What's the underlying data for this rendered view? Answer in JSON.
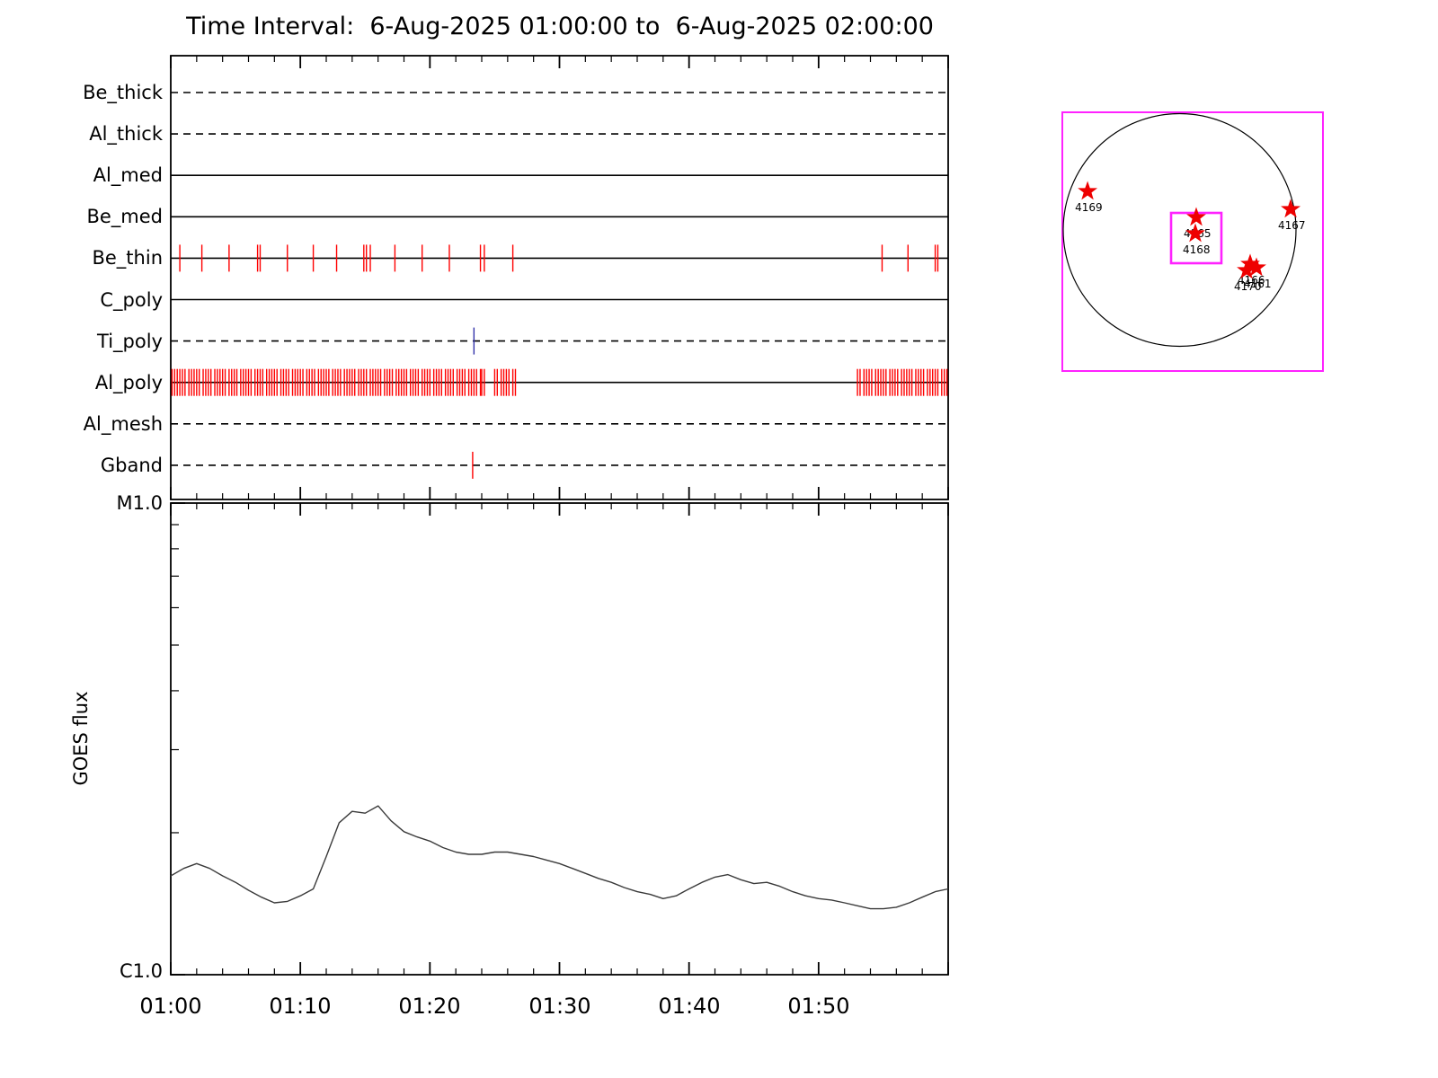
{
  "page": {
    "title": "Time Interval:  6-Aug-2025 01:00:00 to  6-Aug-2025 02:00:00"
  },
  "chart_data": [
    {
      "type": "line",
      "name": "xrt_filter_exposure_timeline",
      "x_axis": {
        "start": "01:00",
        "end": "02:00",
        "minutes_span": 60
      },
      "exposure_tick_color": "#ff0000",
      "rows": [
        {
          "label": "Be_thick",
          "line_style": "dashed",
          "exposures": []
        },
        {
          "label": "Al_thick",
          "line_style": "dashed",
          "exposures": []
        },
        {
          "label": "Al_med",
          "line_style": "solid",
          "exposures": []
        },
        {
          "label": "Be_med",
          "line_style": "solid",
          "exposures": []
        },
        {
          "label": "Be_thin",
          "line_style": "solid",
          "exposure_color": "#ff0000",
          "exposures": [
            0.7,
            2.4,
            4.5,
            6.7,
            6.9,
            9.0,
            11.0,
            12.8,
            14.9,
            15.1,
            15.4,
            17.3,
            19.4,
            21.5,
            23.9,
            24.2,
            26.4,
            54.9,
            56.9,
            59.0,
            59.2
          ]
        },
        {
          "label": "C_poly",
          "line_style": "solid",
          "exposures": []
        },
        {
          "label": "Ti_poly",
          "line_style": "dashed",
          "exposure_color": "#3333aa",
          "exposures": [
            23.4
          ]
        },
        {
          "label": "Al_poly",
          "line_style": "solid",
          "exposure_color": "#ff0000",
          "exposures": [
            0.1,
            0.3,
            0.5,
            0.7,
            0.9,
            1.1,
            1.4,
            1.6,
            1.8,
            2.0,
            2.2,
            2.5,
            2.7,
            2.9,
            3.1,
            3.4,
            3.6,
            3.8,
            4.0,
            4.2,
            4.5,
            4.7,
            4.9,
            5.1,
            5.4,
            5.6,
            5.8,
            6.0,
            6.2,
            6.5,
            6.7,
            6.9,
            7.1,
            7.4,
            7.6,
            7.8,
            8.0,
            8.2,
            8.5,
            8.7,
            8.9,
            9.1,
            9.4,
            9.6,
            9.8,
            10.0,
            10.2,
            10.5,
            10.7,
            10.9,
            11.1,
            11.4,
            11.6,
            11.8,
            12.0,
            12.2,
            12.5,
            12.7,
            12.9,
            13.1,
            13.4,
            13.6,
            13.8,
            14.0,
            14.2,
            14.5,
            14.7,
            14.9,
            15.1,
            15.4,
            15.6,
            15.8,
            16.0,
            16.2,
            16.5,
            16.7,
            16.9,
            17.1,
            17.4,
            17.6,
            17.8,
            18.0,
            18.2,
            18.5,
            18.7,
            18.9,
            19.1,
            19.4,
            19.6,
            19.8,
            20.0,
            20.3,
            20.5,
            20.7,
            20.9,
            21.2,
            21.4,
            21.6,
            21.8,
            22.1,
            22.3,
            22.5,
            22.7,
            23.0,
            23.2,
            23.4,
            23.6,
            23.9,
            24.0,
            24.2,
            25.0,
            25.2,
            25.5,
            25.7,
            25.9,
            26.1,
            26.4,
            26.6,
            53.0,
            53.2,
            53.5,
            53.7,
            53.9,
            54.1,
            54.4,
            54.6,
            54.8,
            55.0,
            55.2,
            55.5,
            55.7,
            55.9,
            56.1,
            56.4,
            56.6,
            56.8,
            57.0,
            57.2,
            57.5,
            57.7,
            57.9,
            58.1,
            58.4,
            58.6,
            58.8,
            59.0,
            59.2,
            59.5,
            59.7,
            59.9
          ]
        },
        {
          "label": "Al_mesh",
          "line_style": "dashed",
          "exposures": []
        },
        {
          "label": "Gband",
          "line_style": "dashed",
          "exposure_color": "#ff0000",
          "exposures": [
            23.3
          ]
        }
      ]
    },
    {
      "type": "line",
      "name": "goes_flux",
      "ylabel": "GOES flux",
      "y_scale": "log",
      "y_ticks": [
        {
          "label": "C1.0",
          "value": 1.0
        },
        {
          "label": "M1.0",
          "value": 10.0
        }
      ],
      "x_tick_labels": [
        "01:00",
        "01:10",
        "01:20",
        "01:30",
        "01:40",
        "01:50"
      ],
      "x_minutes": [
        0,
        1,
        2,
        3,
        4,
        5,
        6,
        7,
        8,
        9,
        10,
        11,
        12,
        13,
        14,
        15,
        16,
        17,
        18,
        19,
        20,
        21,
        22,
        23,
        24,
        25,
        26,
        27,
        28,
        29,
        30,
        31,
        32,
        33,
        34,
        35,
        36,
        37,
        38,
        39,
        40,
        41,
        42,
        43,
        44,
        45,
        46,
        47,
        48,
        49,
        50,
        51,
        52,
        53,
        54,
        55,
        56,
        57,
        58,
        59,
        60
      ],
      "flux_c_units": [
        1.62,
        1.68,
        1.72,
        1.68,
        1.62,
        1.57,
        1.51,
        1.46,
        1.42,
        1.43,
        1.47,
        1.52,
        1.78,
        2.1,
        2.22,
        2.2,
        2.28,
        2.12,
        2.01,
        1.96,
        1.92,
        1.86,
        1.82,
        1.8,
        1.8,
        1.82,
        1.82,
        1.8,
        1.78,
        1.75,
        1.72,
        1.68,
        1.64,
        1.6,
        1.57,
        1.53,
        1.5,
        1.48,
        1.45,
        1.47,
        1.52,
        1.57,
        1.61,
        1.63,
        1.59,
        1.56,
        1.57,
        1.54,
        1.5,
        1.47,
        1.45,
        1.44,
        1.42,
        1.4,
        1.38,
        1.38,
        1.39,
        1.42,
        1.46,
        1.5,
        1.52
      ]
    }
  ],
  "solar_map": {
    "frame_color": "#ff22ff",
    "fov_color": "#ff22ff",
    "star_color": "#ee0000",
    "active_regions": [
      {
        "noaa": "4169",
        "rx": -0.791,
        "ry": -0.332
      },
      {
        "noaa": "4165",
        "rx": 0.143,
        "ry": -0.108
      },
      {
        "noaa": "4168",
        "rx": 0.135,
        "ry": 0.031
      },
      {
        "noaa": "4167",
        "rx": 0.954,
        "ry": -0.178
      },
      {
        "noaa": "4166",
        "rx": 0.606,
        "ry": 0.293
      },
      {
        "noaa": "4161",
        "rx": 0.66,
        "ry": 0.324
      },
      {
        "noaa": "4170",
        "rx": 0.575,
        "ry": 0.347
      }
    ]
  }
}
